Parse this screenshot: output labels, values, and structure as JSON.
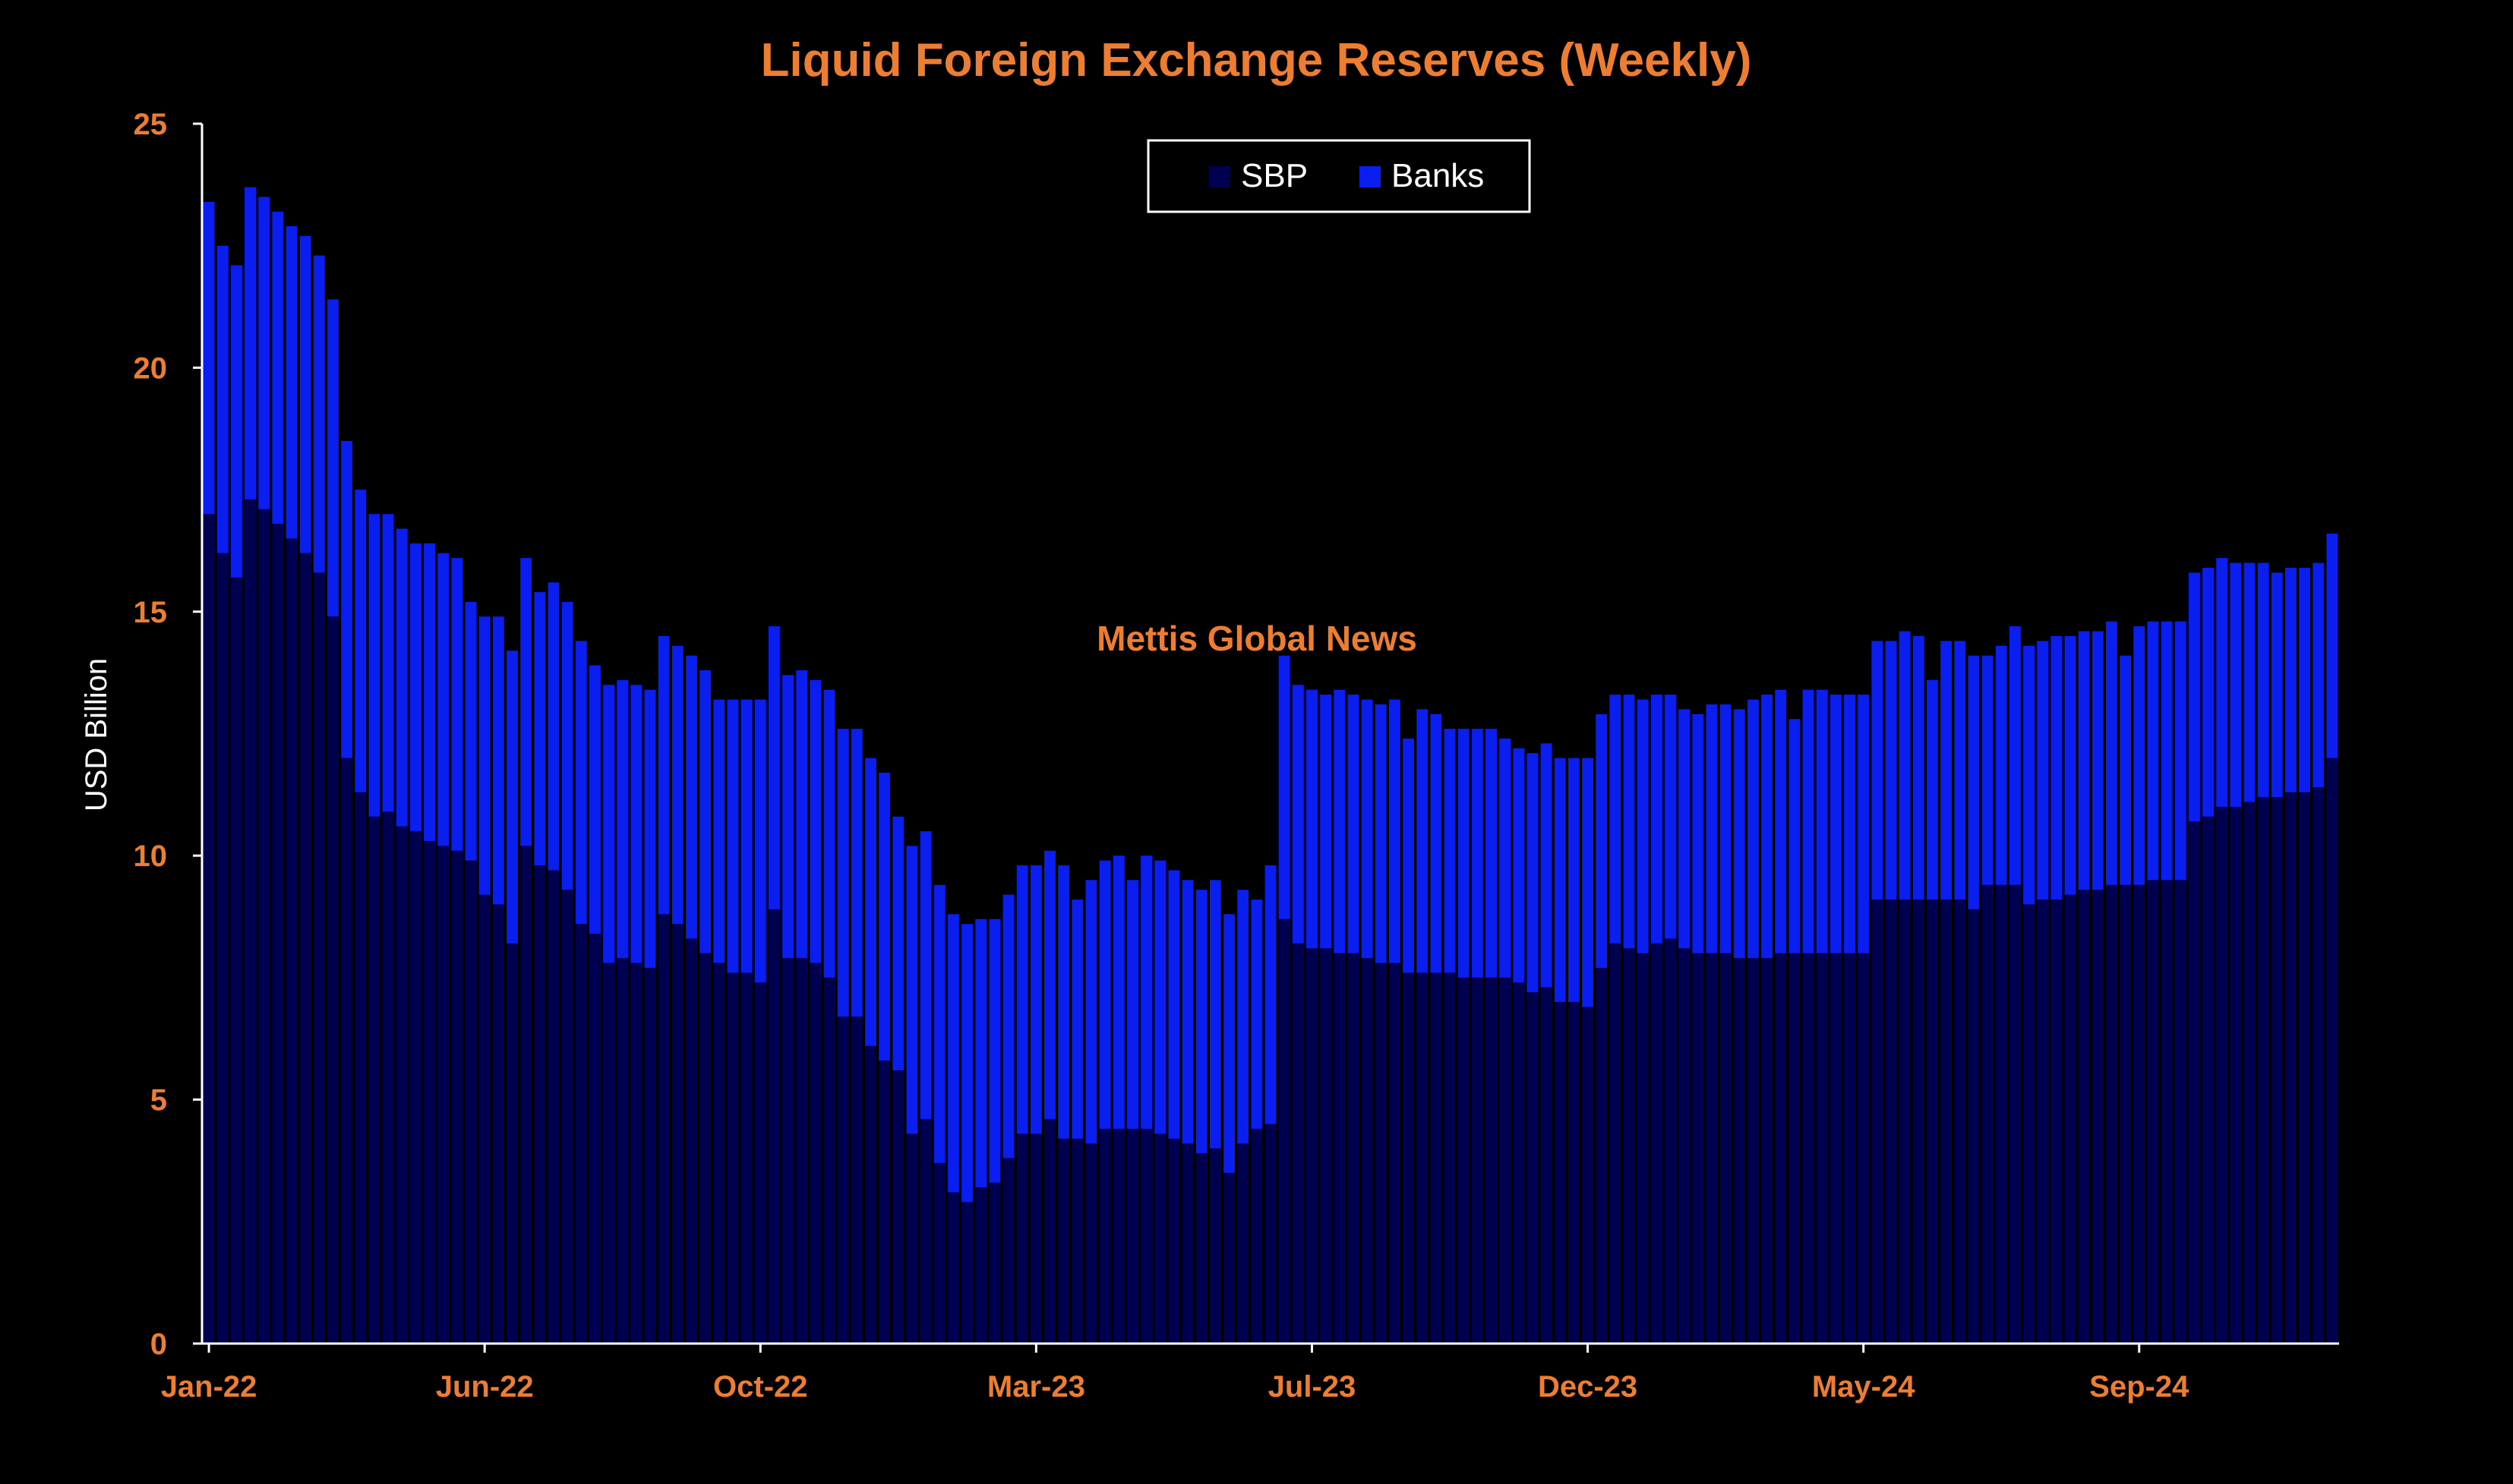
{
  "chart_data": {
    "type": "bar",
    "stacked": true,
    "title": "Liquid Foreign Exchange Reserves (Weekly)",
    "xlabel": "",
    "ylabel": "USD Billion",
    "ylim": [
      0,
      25
    ],
    "yticks": [
      "0",
      "5",
      "10",
      "15",
      "20",
      "25"
    ],
    "x_tick_labels": [
      {
        "label": "Jan-22",
        "index": 0
      },
      {
        "label": "Jun-22",
        "index": 20
      },
      {
        "label": "Oct-22",
        "index": 40
      },
      {
        "label": "Mar-23",
        "index": 60
      },
      {
        "label": "Jul-23",
        "index": 80
      },
      {
        "label": "Dec-23",
        "index": 100
      },
      {
        "label": "May-24",
        "index": 120
      },
      {
        "label": "Sep-24",
        "index": 140
      }
    ],
    "legend": {
      "position": "top-center",
      "entries": [
        "SBP",
        "Banks"
      ]
    },
    "watermark": "Mettis Global News",
    "grid": false,
    "colors": {
      "SBP": "#000050",
      "Banks": "#0A1EF0",
      "text": "#ED7D31",
      "background": "#000000",
      "axis": "#FFFFFF"
    },
    "series": [
      {
        "name": "SBP",
        "values": [
          17.0,
          16.2,
          15.7,
          17.3,
          17.1,
          16.8,
          16.5,
          16.2,
          15.8,
          14.9,
          12.0,
          11.3,
          10.8,
          10.9,
          10.6,
          10.5,
          10.3,
          10.2,
          10.1,
          9.9,
          9.2,
          9.0,
          8.2,
          10.2,
          9.8,
          9.7,
          9.3,
          8.6,
          8.4,
          7.8,
          7.9,
          7.8,
          7.7,
          8.8,
          8.6,
          8.3,
          8.0,
          7.8,
          7.6,
          7.6,
          7.4,
          8.9,
          7.9,
          7.9,
          7.8,
          7.5,
          6.7,
          6.7,
          6.1,
          5.8,
          5.6,
          4.3,
          4.6,
          3.7,
          3.1,
          2.9,
          3.2,
          3.3,
          3.8,
          4.3,
          4.3,
          4.6,
          4.2,
          4.2,
          4.1,
          4.4,
          4.4,
          4.4,
          4.4,
          4.3,
          4.2,
          4.1,
          3.9,
          4.0,
          3.5,
          4.1,
          4.4,
          4.5,
          8.7,
          8.2,
          8.1,
          8.1,
          8.0,
          8.0,
          7.9,
          7.8,
          7.8,
          7.6,
          7.6,
          7.6,
          7.6,
          7.5,
          7.5,
          7.5,
          7.5,
          7.4,
          7.2,
          7.3,
          7.0,
          7.0,
          6.9,
          7.7,
          8.2,
          8.1,
          8.0,
          8.2,
          8.3,
          8.1,
          8.0,
          8.0,
          8.0,
          7.9,
          7.9,
          7.9,
          8.0,
          8.0,
          8.0,
          8.0,
          8.0,
          8.0,
          8.0,
          9.1,
          9.1,
          9.1,
          9.1,
          9.1,
          9.1,
          9.1,
          8.9,
          9.4,
          9.4,
          9.4,
          9.0,
          9.1,
          9.1,
          9.2,
          9.3,
          9.3,
          9.4,
          9.4,
          9.4,
          9.5,
          9.5,
          9.5,
          10.7,
          10.8,
          11.0,
          11.0,
          11.1,
          11.2,
          11.2,
          11.3,
          11.3,
          11.4,
          12.0
        ]
      },
      {
        "name": "Banks",
        "values": [
          6.4,
          6.3,
          6.4,
          6.4,
          6.4,
          6.4,
          6.4,
          6.5,
          6.5,
          6.5,
          6.5,
          6.2,
          6.2,
          6.1,
          6.1,
          5.9,
          6.1,
          6.0,
          6.0,
          5.3,
          5.7,
          5.9,
          6.0,
          5.9,
          5.6,
          5.9,
          5.9,
          5.8,
          5.5,
          5.7,
          5.7,
          5.7,
          5.7,
          5.7,
          5.7,
          5.8,
          5.8,
          5.4,
          5.6,
          5.6,
          5.8,
          5.8,
          5.8,
          5.9,
          5.8,
          5.9,
          5.9,
          5.9,
          5.9,
          5.9,
          5.2,
          5.9,
          5.9,
          5.7,
          5.7,
          5.7,
          5.5,
          5.4,
          5.4,
          5.5,
          5.5,
          5.5,
          5.6,
          4.9,
          5.4,
          5.5,
          5.6,
          5.1,
          5.6,
          5.6,
          5.5,
          5.4,
          5.4,
          5.5,
          5.3,
          5.2,
          4.7,
          5.3,
          5.4,
          5.3,
          5.3,
          5.2,
          5.4,
          5.3,
          5.3,
          5.3,
          5.4,
          4.8,
          5.4,
          5.3,
          5.0,
          5.1,
          5.1,
          5.1,
          4.9,
          4.8,
          4.9,
          5.0,
          5.0,
          5.0,
          5.1,
          5.2,
          5.1,
          5.2,
          5.2,
          5.1,
          5.0,
          4.9,
          4.9,
          5.1,
          5.1,
          5.1,
          5.3,
          5.4,
          5.4,
          4.8,
          5.4,
          5.4,
          5.3,
          5.3,
          5.3,
          5.3,
          5.3,
          5.5,
          5.4,
          4.5,
          5.3,
          5.3,
          5.2,
          4.7,
          4.9,
          5.3,
          5.3,
          5.3,
          5.4,
          5.3,
          5.3,
          5.3,
          5.4,
          4.7,
          5.3,
          5.3,
          5.3,
          5.3,
          5.1,
          5.1,
          5.1,
          5.0,
          4.9,
          4.8,
          4.6,
          4.6,
          4.6,
          4.6,
          4.6
        ]
      }
    ]
  }
}
